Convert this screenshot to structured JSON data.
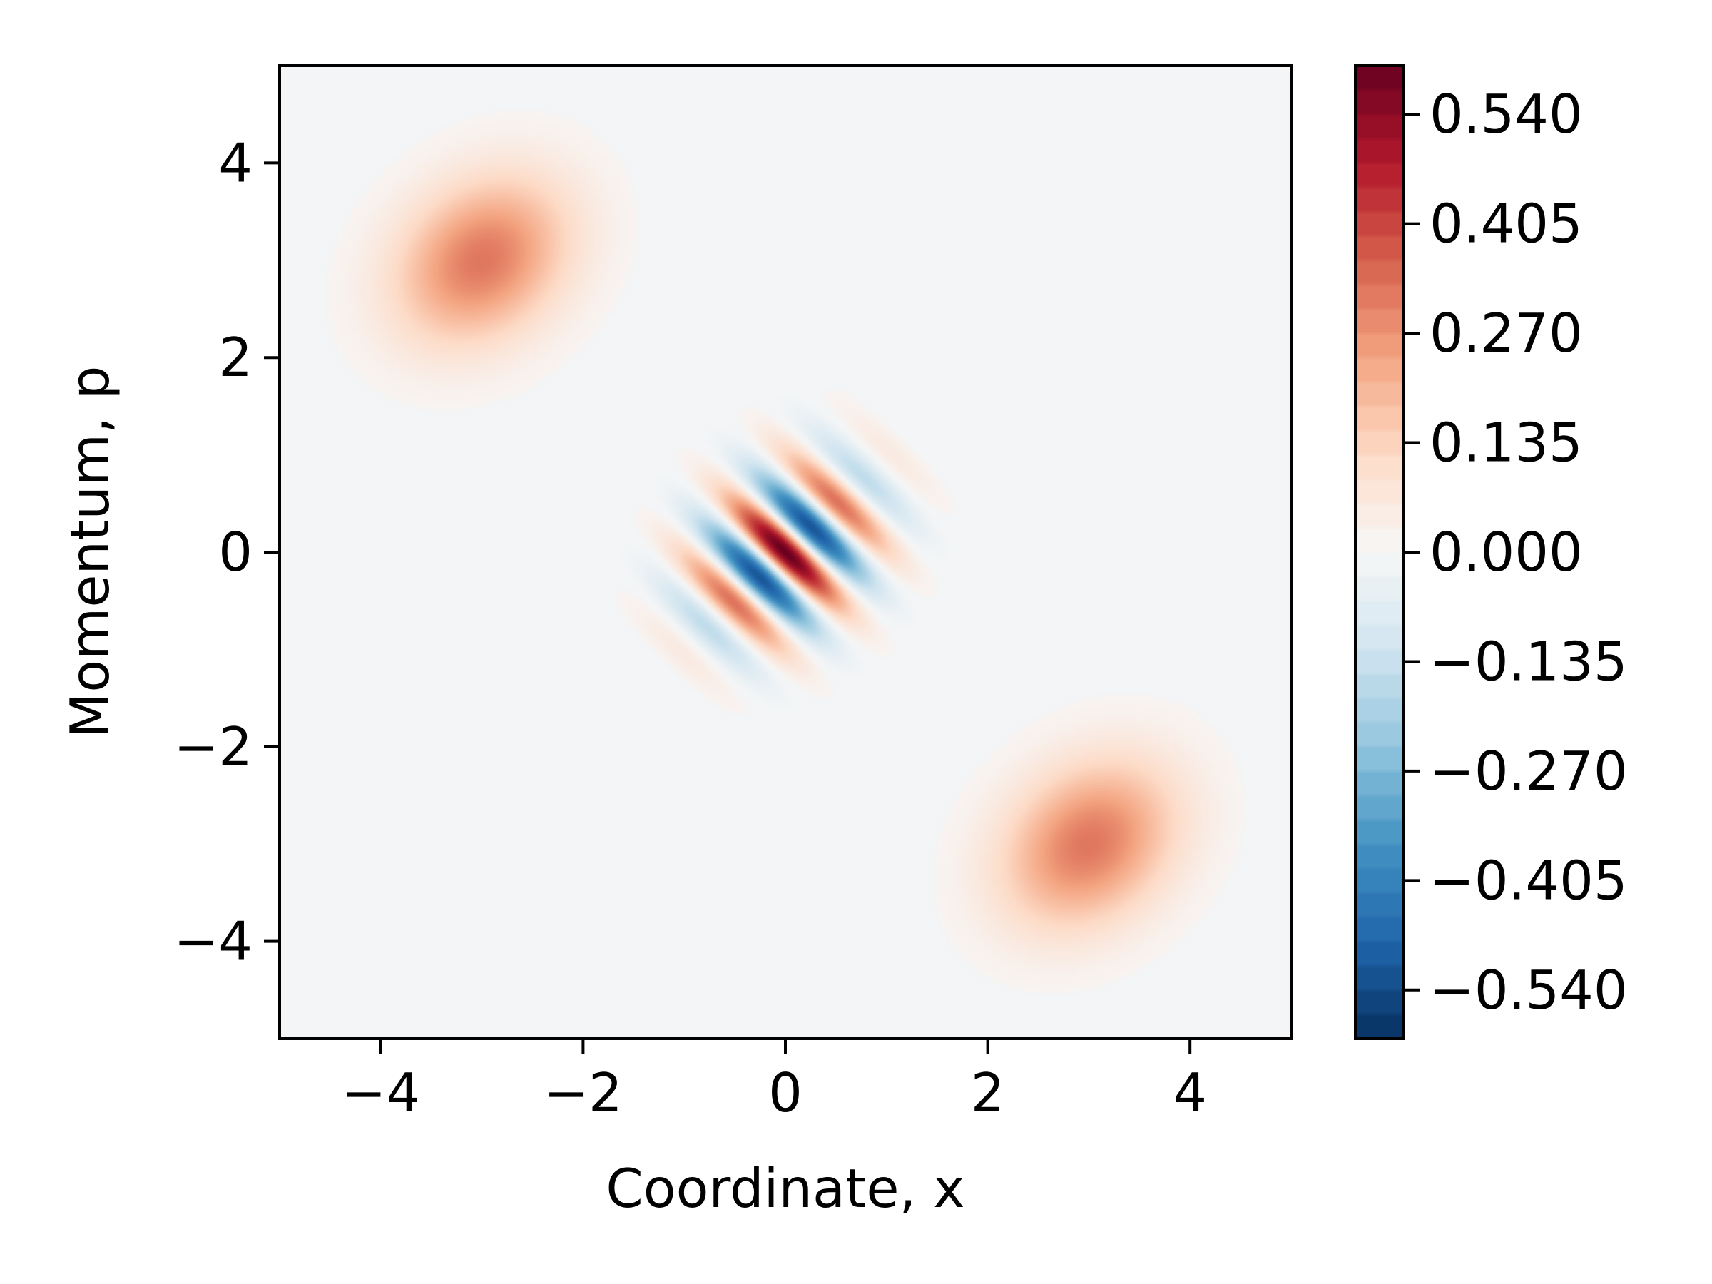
{
  "chart_data": {
    "type": "heatmap",
    "title": "",
    "xlabel": "Coordinate, x",
    "ylabel": "Momentum, p",
    "xlim": [
      -5,
      5
    ],
    "ylim": [
      -5,
      5
    ],
    "x_ticks": [
      -4,
      -2,
      0,
      2,
      4
    ],
    "x_tick_labels": [
      "−4",
      "−2",
      "0",
      "2",
      "4"
    ],
    "y_ticks": [
      -4,
      -2,
      0,
      2,
      4
    ],
    "y_tick_labels": [
      "−4",
      "−2",
      "0",
      "2",
      "4"
    ],
    "colormap": "RdBu_r",
    "colorbar": {
      "min": -0.6,
      "max": 0.6,
      "ticks": [
        0.54,
        0.405,
        0.27,
        0.135,
        0.0,
        -0.135,
        -0.27,
        -0.405,
        -0.54
      ],
      "tick_labels": [
        "0.540",
        "0.405",
        "0.270",
        "0.135",
        "0.000",
        "−0.135",
        "−0.270",
        "−0.405",
        "−0.540"
      ]
    },
    "features": [
      {
        "kind": "gaussian_blob",
        "center": [
          -3,
          3
        ],
        "peak_value": 0.32
      },
      {
        "kind": "gaussian_blob",
        "center": [
          3,
          -3
        ],
        "peak_value": 0.32
      },
      {
        "kind": "interference_fringes",
        "center": [
          0,
          0
        ],
        "peak_value": 0.6,
        "min_value": -0.6
      }
    ],
    "grid": false,
    "legend": "none",
    "colors": {
      "background_field": "#eef3f5",
      "positive_max": "#67001f",
      "negative_max": "#053061",
      "zero": "#f7f7f7"
    }
  }
}
